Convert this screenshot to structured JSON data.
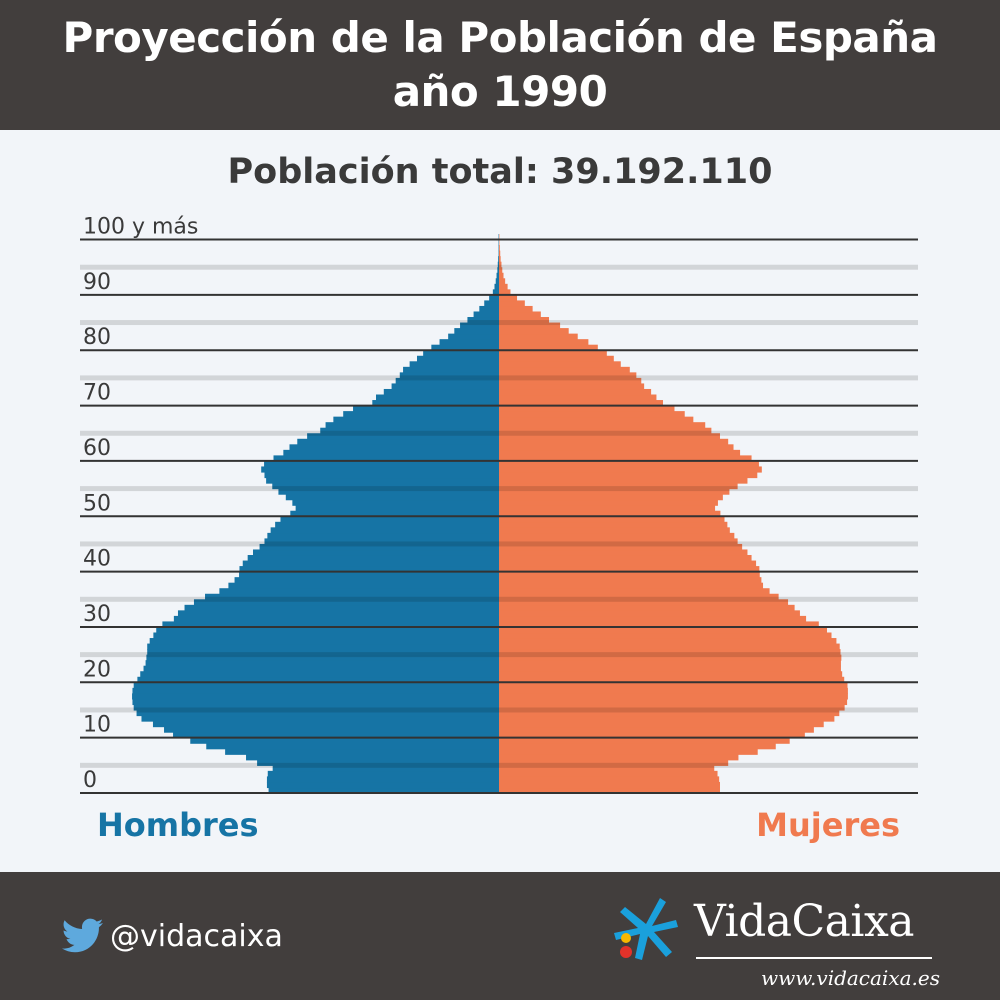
{
  "header": {
    "title_line1": "Proyección de la Población de España",
    "title_line2": "año 1990"
  },
  "total_label": "Población total: 39.192.110",
  "colors": {
    "male": "#1674a5",
    "female": "#f07a4f",
    "header_bg": "#423e3d",
    "page_bg": "#f2f5f9",
    "grid": "#333333"
  },
  "legend": {
    "male_label": "Hombres",
    "female_label": "Mujeres"
  },
  "footer": {
    "twitter_icon": "twitter-bird-icon",
    "twitter_handle": "@vidacaixa",
    "brand_icon": "caixa-star-icon",
    "brand_name": "VidaCaixa",
    "brand_url": "www.vidacaixa.es"
  },
  "chart_data": {
    "type": "population-pyramid",
    "title": "Población total: 39.192.110",
    "y_ticks": [
      "0",
      "10",
      "20",
      "30",
      "40",
      "50",
      "60",
      "70",
      "80",
      "90",
      "100 y más"
    ],
    "x_max": 100,
    "value_unit": "relative bar length (0-100), no x-axis printed",
    "series": [
      {
        "name": "Hombres",
        "values": [
          56.2,
          56.6,
          56.6,
          56.4,
          55.2,
          59.0,
          61.7,
          66.8,
          71.4,
          75.3,
          79.5,
          81.7,
          84.4,
          87.2,
          88.4,
          89.1,
          89.4,
          89.5,
          89.4,
          89.1,
          88.2,
          87.5,
          86.7,
          86.2,
          86.0,
          85.8,
          85.8,
          85.2,
          84.3,
          83.6,
          82.1,
          79.3,
          78.3,
          76.7,
          74.4,
          71.7,
          68.2,
          66.0,
          64.5,
          63.4,
          63.3,
          62.5,
          61.3,
          60.0,
          58.4,
          57.2,
          56.5,
          55.7,
          54.6,
          53.3,
          50.9,
          49.6,
          50.4,
          52.0,
          53.8,
          55.3,
          56.8,
          57.2,
          58.0,
          57.3,
          55.0,
          52.6,
          51.1,
          49.2,
          46.8,
          43.6,
          42.3,
          40.4,
          38.0,
          35.6,
          30.9,
          30.0,
          28.1,
          26.2,
          25.2,
          24.2,
          23.4,
          21.8,
          20.0,
          18.5,
          16.5,
          14.5,
          12.4,
          10.9,
          9.5,
          7.7,
          6.2,
          4.8,
          3.6,
          2.4,
          1.5,
          1.1,
          0.8,
          0.6,
          0.4,
          0.3,
          0.2,
          0.1,
          0.1,
          0.1,
          0.1
        ]
      },
      {
        "name": "Mujeres",
        "values": [
          53.9,
          53.9,
          53.7,
          53.3,
          52.5,
          55.9,
          58.4,
          63.1,
          67.5,
          70.9,
          74.6,
          76.8,
          79.2,
          81.8,
          83.0,
          84.3,
          84.9,
          85.1,
          85.1,
          85.0,
          84.2,
          83.7,
          83.4,
          83.4,
          83.5,
          83.3,
          83.1,
          82.3,
          81.1,
          80.0,
          78.0,
          74.9,
          73.4,
          72.1,
          70.5,
          68.2,
          66.0,
          64.4,
          64.0,
          63.6,
          63.5,
          62.7,
          61.6,
          60.6,
          59.3,
          58.2,
          57.4,
          56.3,
          55.7,
          55.0,
          54.0,
          52.7,
          53.4,
          54.6,
          56.2,
          58.2,
          60.6,
          63.0,
          64.1,
          63.4,
          61.6,
          58.8,
          57.2,
          55.9,
          53.9,
          51.8,
          50.3,
          47.4,
          45.3,
          42.8,
          40.0,
          38.4,
          37.1,
          35.4,
          34.7,
          33.5,
          31.9,
          29.7,
          28.0,
          26.3,
          24.1,
          21.8,
          19.2,
          17.0,
          14.9,
          12.2,
          10.2,
          8.2,
          6.3,
          4.4,
          2.8,
          2.1,
          1.5,
          1.1,
          0.8,
          0.6,
          0.4,
          0.3,
          0.2,
          0.1,
          0.1
        ]
      }
    ]
  }
}
